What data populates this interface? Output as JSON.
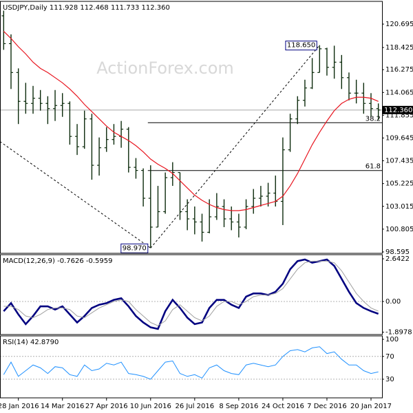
{
  "chart_data": [
    {
      "type": "ohlc",
      "title": "USDJPY,Daily  111.928 112.468 111.733 112.360",
      "watermark": "ActionForex.com",
      "categories": [
        null,
        null,
        "28 Jan 2016",
        null,
        null,
        null,
        null,
        null,
        "14 Mar 2016",
        null,
        null,
        null,
        null,
        null,
        "27 Apr 2016",
        null,
        null,
        null,
        null,
        null,
        "10 Jun 2016",
        null,
        null,
        null,
        null,
        null,
        "26 Jul 2016",
        null,
        null,
        null,
        null,
        null,
        "8 Sep 2016",
        null,
        null,
        null,
        null,
        null,
        "24 Oct 2016",
        null,
        null,
        null,
        null,
        null,
        "7 Dec 2016",
        null,
        null,
        null,
        null,
        null,
        "20 Jan 2017",
        null
      ],
      "open": [
        121.5,
        118.8,
        116.0,
        113.2,
        113.0,
        113.5,
        113.0,
        112.5,
        112.8,
        113.0,
        109.8,
        108.8,
        111.5,
        107.0,
        108.7,
        109.5,
        109.8,
        110.5,
        106.8,
        106.5,
        103.8,
        101.0,
        102.5,
        105.8,
        106.3,
        102.5,
        101.8,
        101.5,
        100.5,
        102.0,
        103.0,
        101.8,
        101.5,
        101.0,
        103.0,
        103.8,
        104.0,
        104.3,
        103.5,
        108.5,
        111.5,
        113.3,
        114.5,
        116.0,
        118.3,
        116.5,
        117.0,
        115.5,
        114.0,
        114.0,
        113.0,
        112.5
      ],
      "high": [
        122.0,
        119.7,
        116.4,
        115.0,
        114.7,
        114.3,
        113.7,
        114.3,
        114.0,
        113.2,
        111.0,
        112.3,
        112.0,
        109.7,
        110.7,
        111.0,
        111.3,
        110.7,
        107.7,
        106.7,
        107.0,
        105.0,
        106.3,
        107.3,
        106.3,
        103.7,
        103.0,
        102.3,
        103.7,
        104.3,
        103.7,
        103.0,
        102.3,
        103.7,
        104.7,
        105.0,
        105.3,
        106.0,
        109.7,
        112.0,
        113.7,
        115.3,
        117.4,
        118.65,
        118.4,
        118.6,
        117.7,
        116.0,
        115.3,
        115.0,
        114.0,
        113.0
      ],
      "low": [
        118.2,
        114.4,
        111.0,
        112.0,
        112.0,
        112.3,
        111.0,
        111.3,
        111.7,
        109.0,
        108.0,
        108.6,
        105.6,
        106.0,
        108.3,
        109.0,
        108.7,
        106.3,
        105.7,
        103.0,
        98.97,
        101.0,
        102.3,
        105.0,
        101.7,
        100.7,
        100.3,
        99.6,
        100.4,
        101.7,
        101.0,
        100.7,
        100.0,
        100.8,
        102.3,
        103.0,
        103.0,
        103.0,
        101.2,
        108.3,
        111.0,
        112.7,
        114.4,
        116.0,
        115.7,
        115.4,
        114.4,
        113.3,
        113.0,
        112.0,
        111.7,
        111.4
      ],
      "close": [
        118.8,
        116.0,
        113.2,
        113.0,
        113.5,
        113.0,
        112.5,
        112.8,
        113.0,
        109.8,
        108.8,
        111.5,
        107.0,
        108.7,
        109.5,
        109.8,
        110.5,
        106.8,
        106.5,
        103.8,
        101.0,
        102.5,
        105.8,
        106.3,
        102.5,
        101.8,
        101.5,
        100.5,
        102.0,
        103.0,
        101.8,
        101.5,
        101.0,
        103.0,
        103.8,
        104.0,
        104.3,
        103.5,
        108.5,
        111.5,
        113.3,
        114.5,
        116.0,
        118.3,
        116.5,
        117.0,
        115.5,
        114.0,
        114.0,
        113.0,
        112.5,
        112.36
      ],
      "color": "#0b2a0b",
      "ma": {
        "color": "#e8141e",
        "values": [
          120.0,
          119.3,
          118.5,
          117.8,
          117.0,
          116.4,
          116.0,
          115.5,
          115.0,
          114.4,
          113.7,
          112.9,
          112.2,
          111.5,
          110.8,
          110.2,
          109.8,
          109.4,
          108.9,
          108.3,
          107.6,
          107.1,
          106.7,
          106.2,
          105.5,
          104.8,
          104.1,
          103.6,
          103.2,
          102.9,
          102.7,
          102.6,
          102.6,
          102.7,
          102.9,
          103.1,
          103.3,
          103.5,
          104.0,
          105.0,
          106.2,
          107.6,
          109.0,
          110.2,
          111.3,
          112.3,
          113.0,
          113.4,
          113.6,
          113.6,
          113.5,
          113.2
        ]
      },
      "ylim": [
        98.46,
        122.9
      ],
      "yticks": [
        120.695,
        118.425,
        116.275,
        114.065,
        111.855,
        109.645,
        107.435,
        105.225,
        103.015,
        100.805,
        98.595
      ],
      "last_price": {
        "value": 112.36,
        "label": "112.360"
      },
      "annotations": [
        {
          "value": 118.65,
          "label": "118.650"
        },
        {
          "value": 98.97,
          "label": "98.970"
        }
      ],
      "fib_levels": [
        {
          "name": "38.2",
          "value": 111.13
        },
        {
          "name": "61.8",
          "value": 106.49
        }
      ],
      "trendlines": [
        {
          "x": [
            0,
            20
          ],
          "values": [
            109.3,
            98.97
          ]
        },
        {
          "x": [
            20,
            43
          ],
          "values": [
            98.97,
            118.65
          ]
        }
      ]
    },
    {
      "type": "line",
      "title": "MACD(12,26,9) -0.7626 -0.5959",
      "series": [
        {
          "color": "#000080",
          "values": [
            -0.6,
            -0.1,
            -0.8,
            -1.4,
            -0.9,
            -0.3,
            -0.3,
            -0.5,
            -0.3,
            -0.8,
            -1.3,
            -0.9,
            -0.4,
            -0.2,
            -0.1,
            0.1,
            0.2,
            -0.3,
            -0.9,
            -1.3,
            -1.6,
            -1.7,
            -0.6,
            0.1,
            -0.4,
            -1.0,
            -1.4,
            -1.3,
            -0.4,
            0.1,
            0.1,
            -0.2,
            -0.4,
            0.3,
            0.5,
            0.5,
            0.4,
            0.6,
            1.1,
            2.0,
            2.5,
            2.6,
            2.4,
            2.5,
            2.6,
            2.2,
            1.4,
            0.6,
            -0.1,
            -0.4,
            -0.6,
            -0.7626
          ]
        },
        {
          "color": "#a0a0a0",
          "values": [
            -0.3,
            -0.3,
            -0.5,
            -0.9,
            -1.0,
            -0.8,
            -0.5,
            -0.4,
            -0.4,
            -0.5,
            -0.9,
            -1.0,
            -0.7,
            -0.4,
            -0.2,
            0.0,
            0.1,
            0.0,
            -0.5,
            -0.9,
            -1.3,
            -1.5,
            -1.2,
            -0.5,
            -0.2,
            -0.6,
            -1.0,
            -1.2,
            -0.9,
            -0.3,
            0.0,
            0.0,
            -0.2,
            0.0,
            0.3,
            0.4,
            0.4,
            0.5,
            0.8,
            1.4,
            2.0,
            2.4,
            2.5,
            2.5,
            2.5,
            2.4,
            1.9,
            1.2,
            0.5,
            0.0,
            -0.4,
            -0.5959
          ]
        }
      ],
      "ylim": [
        -2.045,
        2.898
      ],
      "yticks": [
        2.6422,
        {
          "value": 0,
          "label": "0.00"
        },
        -1.8978
      ],
      "hlines": [
        0
      ]
    },
    {
      "type": "line",
      "title": "RSI(14) 42.8790",
      "series": [
        {
          "color": "#1e90ff",
          "values": [
            38,
            60,
            35,
            45,
            55,
            50,
            40,
            52,
            50,
            38,
            35,
            55,
            45,
            48,
            58,
            55,
            60,
            40,
            38,
            35,
            30,
            45,
            60,
            62,
            40,
            35,
            38,
            32,
            50,
            55,
            45,
            40,
            38,
            55,
            58,
            55,
            52,
            55,
            70,
            80,
            82,
            78,
            85,
            87,
            75,
            78,
            65,
            55,
            55,
            45,
            40,
            42.879
          ]
        }
      ],
      "ylim": [
        -2.7,
        106
      ],
      "yticks": [
        100,
        70,
        30
      ],
      "hlines": [
        70,
        30
      ]
    }
  ]
}
